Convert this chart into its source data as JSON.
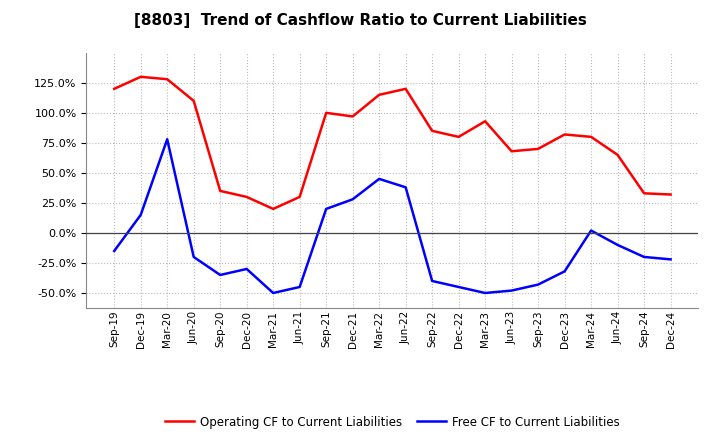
{
  "title": "[8803]  Trend of Cashflow Ratio to Current Liabilities",
  "x_labels": [
    "Sep-19",
    "Dec-19",
    "Mar-20",
    "Jun-20",
    "Sep-20",
    "Dec-20",
    "Mar-21",
    "Jun-21",
    "Sep-21",
    "Dec-21",
    "Mar-22",
    "Jun-22",
    "Sep-22",
    "Dec-22",
    "Mar-23",
    "Jun-23",
    "Sep-23",
    "Dec-23",
    "Mar-24",
    "Jun-24",
    "Sep-24",
    "Dec-24"
  ],
  "operating_cf": [
    120,
    130,
    128,
    110,
    35,
    30,
    20,
    30,
    100,
    97,
    115,
    120,
    85,
    80,
    93,
    68,
    70,
    82,
    80,
    65,
    33,
    32
  ],
  "free_cf": [
    -15,
    15,
    78,
    -20,
    -35,
    -30,
    -50,
    -45,
    20,
    28,
    45,
    38,
    -40,
    -45,
    -50,
    -48,
    -43,
    -32,
    2,
    -10,
    -20,
    -22
  ],
  "operating_color": "#FF0000",
  "free_color": "#0000FF",
  "ylim": [
    -62.5,
    150
  ],
  "yticks": [
    -50,
    -25,
    0,
    25,
    50,
    75,
    100,
    125
  ],
  "background_color": "#FFFFFF",
  "grid_color": "#BBBBBB",
  "legend_op_label": "Operating CF to Current Liabilities",
  "legend_free_label": "Free CF to Current Liabilities"
}
